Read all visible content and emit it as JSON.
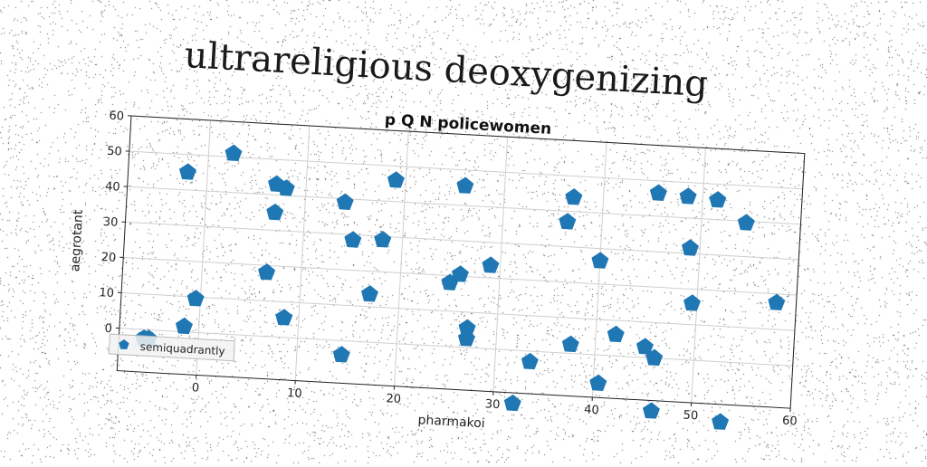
{
  "figure": {
    "suptitle": "ultrareligious deoxygenizing"
  },
  "chart_data": {
    "type": "scatter",
    "title": "p Q N policewomen",
    "xlabel": "pharmakoi",
    "ylabel": "aegrotant",
    "xlim": [
      -8,
      60
    ],
    "ylim": [
      -12,
      60
    ],
    "xticks": [
      0,
      10,
      20,
      30,
      40,
      50,
      60
    ],
    "yticks": [
      0,
      10,
      20,
      30,
      40,
      50,
      60
    ],
    "grid": true,
    "legend_position": "lower-left",
    "marker": "pentagon",
    "color": "#1f77b4",
    "series": [
      {
        "name": "semiquadrantly",
        "points": [
          [
            -5.5,
            -2.5
          ],
          [
            -5.0,
            -2.5
          ],
          [
            -2.0,
            45
          ],
          [
            -1.5,
            1.5
          ],
          [
            -0.5,
            9.5
          ],
          [
            2.5,
            51
          ],
          [
            6.5,
            18
          ],
          [
            7.0,
            43
          ],
          [
            7.0,
            35
          ],
          [
            8.0,
            42
          ],
          [
            8.5,
            5.5
          ],
          [
            14.0,
            39
          ],
          [
            14.5,
            -4
          ],
          [
            15.0,
            28.5
          ],
          [
            17.0,
            13.5
          ],
          [
            18.0,
            29
          ],
          [
            19.0,
            46
          ],
          [
            25.0,
            18
          ],
          [
            26.0,
            20.5
          ],
          [
            26.0,
            45.5
          ],
          [
            27.0,
            2.5
          ],
          [
            27.0,
            5.5
          ],
          [
            29.0,
            23.5
          ],
          [
            32.0,
            -15
          ],
          [
            33.5,
            -3
          ],
          [
            36.5,
            37
          ],
          [
            37.0,
            44
          ],
          [
            37.5,
            2.5
          ],
          [
            40.0,
            26.5
          ],
          [
            40.5,
            -8
          ],
          [
            42.0,
            6
          ],
          [
            45.0,
            3
          ],
          [
            45.5,
            46.5
          ],
          [
            46.0,
            -15
          ],
          [
            46.0,
            0
          ],
          [
            48.5,
            46
          ],
          [
            49.0,
            31.5
          ],
          [
            49.5,
            16
          ],
          [
            51.5,
            45.5
          ],
          [
            53.0,
            -17
          ],
          [
            54.5,
            39.5
          ],
          [
            58.0,
            17.5
          ]
        ]
      }
    ]
  }
}
